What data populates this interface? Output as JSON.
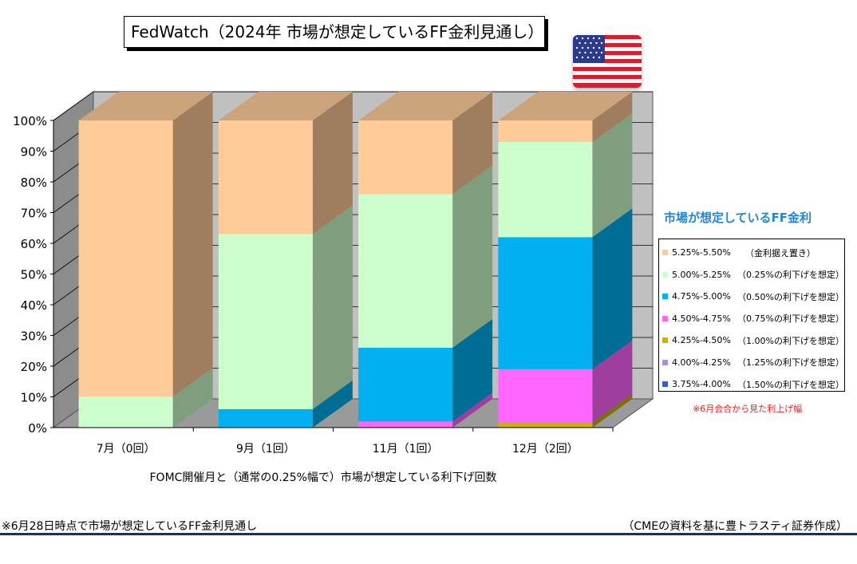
{
  "title": "FedWatch（2024年  市場が想定しているFF金利見通し）",
  "chart_data": {
    "type": "bar",
    "stacked": true,
    "three_d": true,
    "categories": [
      "7月（0回）",
      "9月（1回）",
      "11月（1回）",
      "12月（2回）"
    ],
    "y_ticks": [
      "0%",
      "10%",
      "20%",
      "30%",
      "40%",
      "50%",
      "60%",
      "70%",
      "80%",
      "90%",
      "100%"
    ],
    "ylim": [
      0,
      100
    ],
    "xlabel": "FOMC開催月と（通常の0.25%幅で）市場が想定している利下げ回数",
    "legend_title": "市場が想定しているFF金利",
    "legend_placement": "right",
    "series": [
      {
        "name": "3.75%-4.00%",
        "desc": "（1.50%の利下げを想定）",
        "color": "#2f5fd0",
        "values": [
          0,
          0,
          0,
          0
        ]
      },
      {
        "name": "4.00%-4.25%",
        "desc": "（1.25%の利下げを想定）",
        "color": "#b48ae8",
        "values": [
          0,
          0,
          0,
          0
        ]
      },
      {
        "name": "4.25%-4.50%",
        "desc": "（1.00%の利下げを想定）",
        "color": "#c8b400",
        "values": [
          0,
          0,
          0,
          1.5
        ]
      },
      {
        "name": "4.50%-4.75%",
        "desc": "（0.75%の利下げを想定）",
        "color": "#ff66ff",
        "values": [
          0,
          0,
          2,
          17.5
        ]
      },
      {
        "name": "4.75%-5.00%",
        "desc": "（0.50%の利下げを想定）",
        "color": "#00b0f0",
        "values": [
          0,
          6,
          24,
          43
        ]
      },
      {
        "name": "5.00%-5.25%",
        "desc": "（0.25%の利下げを想定）",
        "color": "#ccffcc",
        "values": [
          10,
          57,
          50,
          31
        ]
      },
      {
        "name": "5.25%-5.50%",
        "desc": "（金利据え置き）",
        "color": "#ffcc99",
        "values": [
          90,
          37,
          24,
          7
        ]
      }
    ],
    "annotation": "※6月会合から見た利上げ幅"
  },
  "footnote": "※6月28日時点で市場が想定しているFF金利見通し",
  "source": "（CMEの資料を基に豊トラスティ証券作成）",
  "flag_icon": "us-flag-icon"
}
